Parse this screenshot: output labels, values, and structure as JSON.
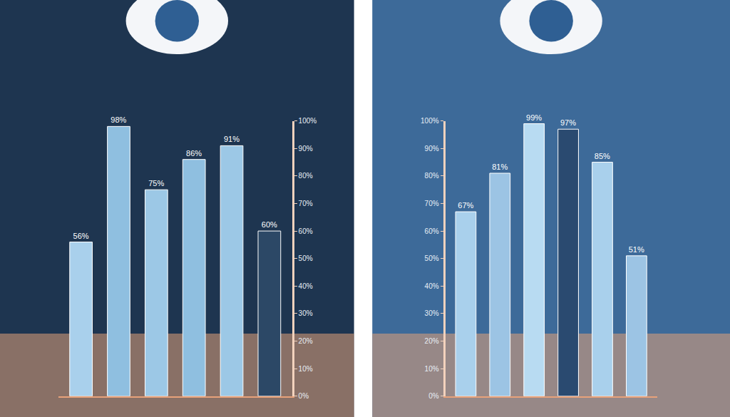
{
  "chart_data": [
    {
      "type": "bar",
      "categories": [
        null,
        null,
        null,
        null,
        null,
        null
      ],
      "values": [
        56,
        98,
        75,
        86,
        91,
        60
      ],
      "value_labels": [
        "56%",
        "98%",
        "75%",
        "86%",
        "91%",
        "60%"
      ],
      "data_labels": true,
      "colors": [
        "#a9d0ec",
        "#8fbfe0",
        "#9cc8e6",
        "#8fbfe0",
        "#9cc8e6",
        "#2c4866"
      ],
      "ylim": [
        0,
        100
      ],
      "yticks": [
        {
          "value": 0,
          "label": "0%"
        },
        {
          "value": 10,
          "label": "10%"
        },
        {
          "value": 20,
          "label": "20%"
        },
        {
          "value": 30,
          "label": "30%"
        },
        {
          "value": 40,
          "label": "40%"
        },
        {
          "value": 50,
          "label": "50%"
        },
        {
          "value": 60,
          "label": "60%"
        },
        {
          "value": 70,
          "label": "70%"
        },
        {
          "value": 80,
          "label": "80%"
        },
        {
          "value": 90,
          "label": "90%"
        },
        {
          "value": 100,
          "label": "100%"
        }
      ],
      "grid": false,
      "tick_labels": "y"
    },
    {
      "type": "bar",
      "categories": [
        null,
        null,
        null,
        null,
        null,
        null
      ],
      "values": [
        67,
        81,
        99,
        97,
        85,
        51
      ],
      "value_labels": [
        "67%",
        "81%",
        "99%",
        "97%",
        "85%",
        "51%"
      ],
      "data_labels": true,
      "colors": [
        "#a9d0ec",
        "#9cc4e4",
        "#b8dbf2",
        "#2a4a70",
        "#a9d0ec",
        "#9cc4e4"
      ],
      "ylim": [
        0,
        100
      ],
      "yticks": [
        {
          "value": 0,
          "label": "0%"
        },
        {
          "value": 10,
          "label": "10%"
        },
        {
          "value": 20,
          "label": "20%"
        },
        {
          "value": 30,
          "label": "30%"
        },
        {
          "value": 40,
          "label": "40%"
        },
        {
          "value": 50,
          "label": "50%"
        },
        {
          "value": 60,
          "label": "60%"
        },
        {
          "value": 70,
          "label": "70%"
        },
        {
          "value": 80,
          "label": "80%"
        },
        {
          "value": 90,
          "label": "90%"
        },
        {
          "value": 100,
          "label": "100%"
        }
      ],
      "grid": false,
      "tick_labels": "y"
    }
  ]
}
